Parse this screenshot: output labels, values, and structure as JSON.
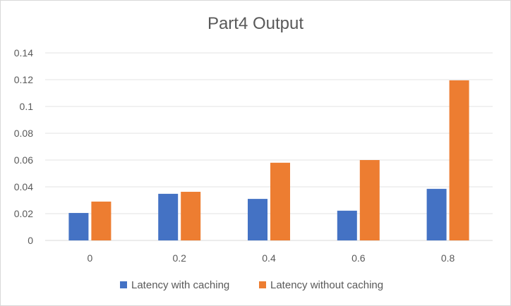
{
  "chart_data": {
    "type": "bar",
    "title": "Part4 Output",
    "categories": [
      "0",
      "0.2",
      "0.4",
      "0.6",
      "0.8"
    ],
    "series": [
      {
        "name": "Latency with caching",
        "color": "#4472C4",
        "values": [
          0.0205,
          0.0348,
          0.031,
          0.0222,
          0.0385
        ]
      },
      {
        "name": "Latency without caching",
        "color": "#ED7D31",
        "values": [
          0.029,
          0.0363,
          0.058,
          0.06,
          0.1195
        ]
      }
    ],
    "ylim": [
      0,
      0.14
    ],
    "yticks": [
      "0",
      "0.02",
      "0.04",
      "0.06",
      "0.08",
      "0.1",
      "0.12",
      "0.14"
    ],
    "grid": true,
    "legend": "bottom"
  }
}
